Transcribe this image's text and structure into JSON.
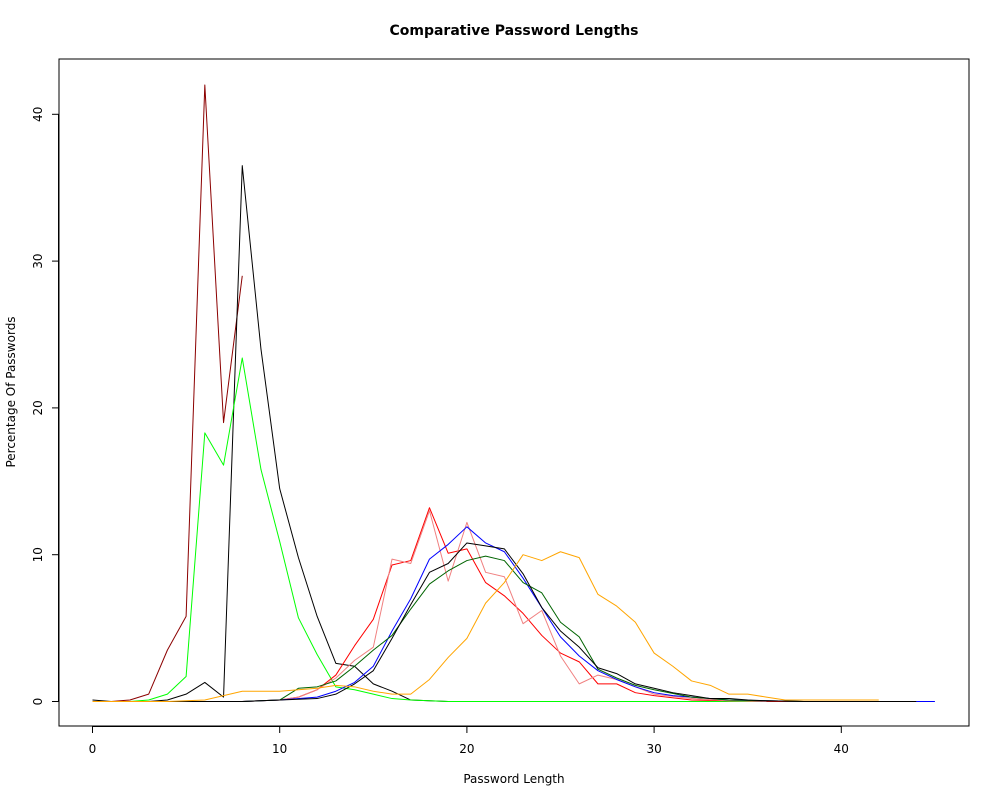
{
  "chart_data": {
    "type": "line",
    "title": "Comparative Password Lengths",
    "xlabel": "Password Length",
    "ylabel": "Percentage Of Passwords",
    "xlim": [
      0,
      45
    ],
    "ylim": [
      0,
      42
    ],
    "xticks": [
      0,
      10,
      20,
      30,
      40
    ],
    "yticks": [
      0,
      10,
      20,
      30,
      40
    ],
    "grid": false,
    "legend": "none",
    "series": [
      {
        "color": "#8b0000",
        "x": [
          0,
          1,
          2,
          3,
          4,
          5,
          6,
          7,
          8
        ],
        "y": [
          0,
          0,
          0.1,
          0.5,
          3.5,
          5.8,
          42,
          19,
          29
        ]
      },
      {
        "color": "#000000",
        "x": [
          0,
          1,
          2,
          3,
          4,
          5,
          6,
          7,
          8,
          9,
          10,
          11,
          12,
          13,
          14,
          15,
          16,
          17,
          18,
          19,
          20
        ],
        "y": [
          0.1,
          0,
          0,
          0,
          0.1,
          0.5,
          1.3,
          0.3,
          36.5,
          24,
          14.5,
          9.8,
          5.8,
          2.6,
          2.4,
          1.2,
          0.7,
          0.1,
          0.05,
          0,
          0
        ]
      },
      {
        "color": "#00ff00",
        "x": [
          0,
          1,
          2,
          3,
          4,
          5,
          6,
          7,
          8,
          9,
          10,
          11,
          12,
          13,
          14,
          15,
          16,
          17,
          18,
          19,
          20,
          21,
          22,
          24,
          26,
          28,
          30,
          32,
          34,
          36,
          38,
          40
        ],
        "y": [
          0,
          0,
          0,
          0.1,
          0.5,
          1.7,
          18.3,
          16.1,
          23.4,
          15.8,
          10.9,
          5.7,
          3.2,
          1,
          0.8,
          0.5,
          0.2,
          0.1,
          0.05,
          0,
          0,
          0,
          0,
          0,
          0,
          0,
          0,
          0,
          0,
          0,
          0,
          0
        ]
      },
      {
        "color": "#ff0000",
        "x": [
          0,
          2,
          4,
          6,
          8,
          10,
          11,
          12,
          13,
          14,
          15,
          16,
          17,
          18,
          19,
          20,
          21,
          22,
          23,
          24,
          25,
          26,
          27,
          28,
          29,
          30,
          32,
          34,
          36,
          38,
          40,
          42,
          44
        ],
        "y": [
          0,
          0,
          0,
          0,
          0,
          0.1,
          0.3,
          0.8,
          1.8,
          3.8,
          5.6,
          9.3,
          9.6,
          13.2,
          10.1,
          10.4,
          8.1,
          7.2,
          6,
          4.5,
          3.3,
          2.7,
          1.2,
          1.2,
          0.6,
          0.4,
          0.1,
          0.05,
          0,
          0,
          0,
          0,
          0
        ]
      },
      {
        "color": "#f08080",
        "x": [
          0,
          2,
          4,
          6,
          8,
          10,
          11,
          12,
          13,
          14,
          15,
          16,
          17,
          18,
          19,
          20,
          21,
          22,
          23,
          24,
          25,
          26,
          27,
          28,
          29,
          30,
          32,
          34,
          36
        ],
        "y": [
          0,
          0,
          0,
          0,
          0,
          0.1,
          0.3,
          0.8,
          1.6,
          2.8,
          3.7,
          9.7,
          9.4,
          13,
          8.2,
          12.2,
          8.8,
          8.5,
          5.3,
          6.2,
          3.1,
          1.2,
          1.8,
          1.5,
          1,
          0.5,
          0.2,
          0.05,
          0
        ]
      },
      {
        "color": "#0000ff",
        "x": [
          0,
          2,
          4,
          6,
          8,
          10,
          12,
          13,
          14,
          15,
          16,
          17,
          18,
          19,
          20,
          21,
          22,
          23,
          24,
          25,
          26,
          27,
          28,
          29,
          30,
          31,
          32,
          33,
          34,
          36,
          38,
          40,
          42,
          44,
          45
        ],
        "y": [
          0,
          0,
          0,
          0,
          0,
          0.1,
          0.3,
          0.7,
          1.3,
          2.4,
          4.8,
          7,
          9.7,
          10.7,
          11.9,
          10.8,
          10.2,
          8.4,
          6.4,
          4.4,
          3.1,
          2.1,
          1.5,
          1,
          0.6,
          0.4,
          0.3,
          0.2,
          0.1,
          0.05,
          0,
          0,
          0,
          0,
          0
        ]
      },
      {
        "color": "#006400",
        "x": [
          0,
          2,
          4,
          6,
          8,
          10,
          11,
          12,
          13,
          14,
          15,
          16,
          17,
          18,
          19,
          20,
          21,
          22,
          23,
          24,
          25,
          26,
          27,
          28,
          29,
          30,
          32,
          34,
          36,
          38,
          40,
          42,
          44
        ],
        "y": [
          0,
          0,
          0,
          0,
          0,
          0.1,
          0.9,
          1,
          1.4,
          2.4,
          3.5,
          4.5,
          6.3,
          8,
          8.9,
          9.6,
          9.9,
          9.6,
          8.1,
          7.4,
          5.4,
          4.4,
          2.2,
          1.6,
          1.1,
          0.8,
          0.3,
          0.1,
          0.05,
          0,
          0,
          0,
          0
        ]
      },
      {
        "color": "#000000",
        "x": [
          0,
          2,
          4,
          6,
          8,
          10,
          12,
          13,
          14,
          15,
          16,
          17,
          18,
          19,
          20,
          21,
          22,
          23,
          24,
          25,
          26,
          27,
          28,
          29,
          30,
          31,
          32,
          33,
          34,
          35,
          36,
          38,
          40,
          42,
          44
        ],
        "y": [
          0,
          0,
          0,
          0,
          0,
          0.1,
          0.2,
          0.5,
          1.2,
          2.1,
          4.3,
          6.6,
          8.8,
          9.4,
          10.8,
          10.6,
          10.4,
          8.7,
          6.4,
          4.8,
          3.7,
          2.3,
          1.9,
          1.2,
          0.9,
          0.6,
          0.4,
          0.2,
          0.2,
          0.1,
          0.05,
          0,
          0,
          0,
          0
        ]
      },
      {
        "color": "#ffa500",
        "x": [
          0,
          2,
          4,
          6,
          7,
          8,
          9,
          10,
          11,
          12,
          13,
          14,
          15,
          16,
          17,
          18,
          19,
          20,
          21,
          22,
          23,
          24,
          25,
          26,
          27,
          28,
          29,
          30,
          31,
          32,
          33,
          34,
          35,
          36,
          37,
          38,
          40,
          42
        ],
        "y": [
          0,
          0,
          0,
          0.1,
          0.4,
          0.7,
          0.7,
          0.7,
          0.8,
          0.9,
          1.1,
          1,
          0.7,
          0.5,
          0.5,
          1.5,
          3,
          4.3,
          6.7,
          8.1,
          10,
          9.6,
          10.2,
          9.8,
          7.3,
          6.5,
          5.4,
          3.3,
          2.4,
          1.4,
          1.1,
          0.5,
          0.5,
          0.3,
          0.1,
          0.1,
          0.1,
          0.1
        ]
      }
    ]
  }
}
